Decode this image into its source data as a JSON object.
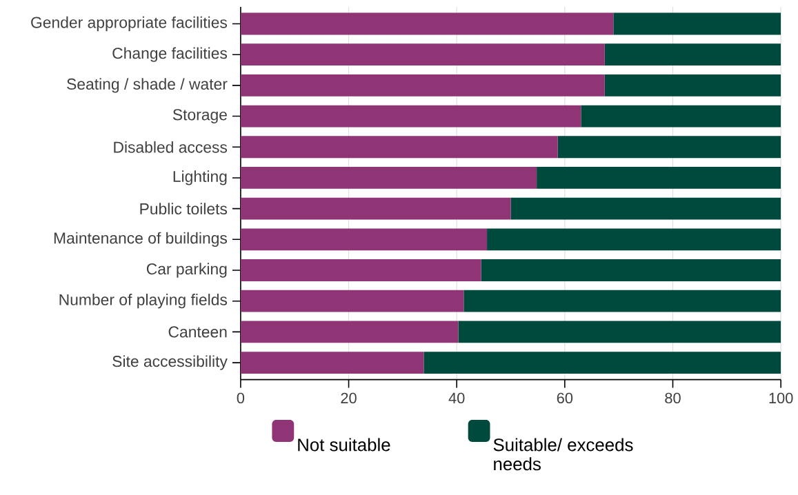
{
  "chart_data": {
    "type": "bar",
    "orientation": "horizontal",
    "stacked": true,
    "categories": [
      "Gender appropriate facilities",
      "Change facilities",
      "Seating / shade / water",
      "Storage",
      "Disabled access",
      "Lighting",
      "Public toilets",
      "Maintenance of buildings",
      "Car parking",
      "Number of playing fields",
      "Canteen",
      "Site accessibility"
    ],
    "series": [
      {
        "name": "Not suitable",
        "color": "#8f3575",
        "values": [
          69.0,
          67.4,
          67.4,
          63.0,
          58.7,
          54.8,
          50.0,
          45.6,
          44.5,
          41.3,
          40.3,
          33.9
        ]
      },
      {
        "name": "Suitable/ exceeds needs",
        "color": "#004a3d",
        "values": [
          31.0,
          32.6,
          32.6,
          37.0,
          41.3,
          45.2,
          50.0,
          54.4,
          55.5,
          58.7,
          59.7,
          66.1
        ]
      }
    ],
    "xlim": [
      0,
      100
    ],
    "xticks": [
      0,
      20,
      40,
      60,
      80,
      100
    ],
    "grid": "x",
    "legend": "bottom"
  }
}
